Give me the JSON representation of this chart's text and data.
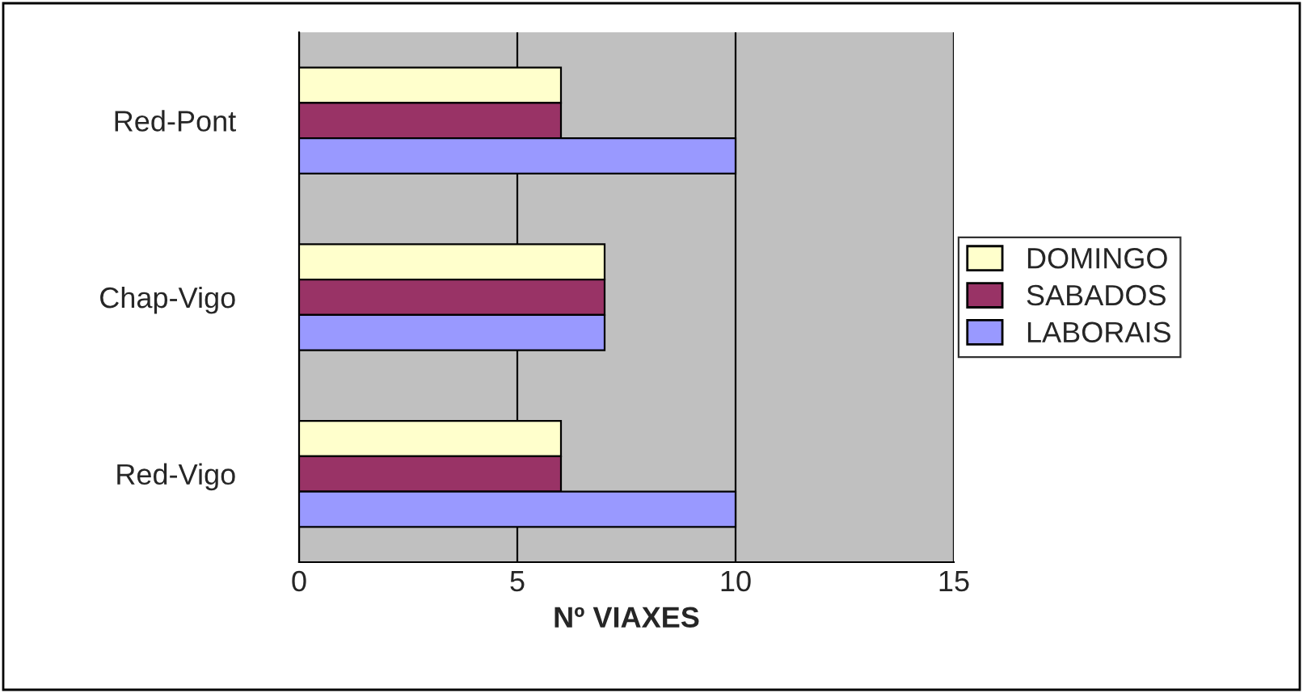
{
  "chart_data": {
    "type": "bar",
    "orientation": "horizontal",
    "xlabel": "Nº VIAXES",
    "categories": [
      "Red-Pont",
      "Chap-Vigo",
      "Red-Vigo"
    ],
    "series": [
      {
        "name": "DOMINGO",
        "color": "#ffffcc",
        "values": [
          6,
          7,
          6
        ]
      },
      {
        "name": "SABADOS",
        "color": "#993366",
        "values": [
          6,
          7,
          6
        ]
      },
      {
        "name": "LABORAIS",
        "color": "#9999ff",
        "values": [
          10,
          7,
          10
        ]
      }
    ],
    "xlim": [
      0,
      15
    ],
    "xticks": [
      0,
      5,
      10,
      15
    ],
    "grid": "x",
    "legend": "right"
  }
}
